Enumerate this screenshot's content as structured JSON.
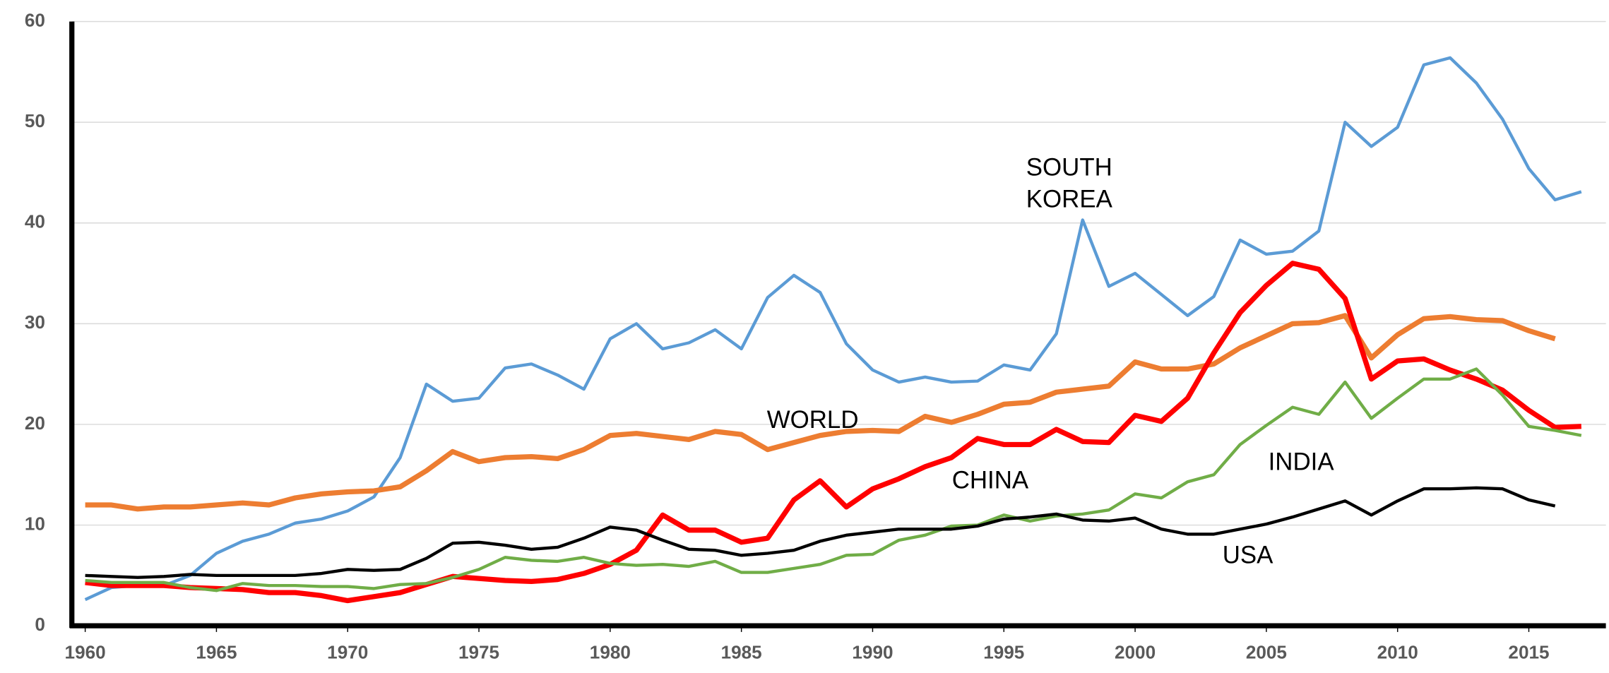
{
  "chart_data": {
    "type": "line",
    "xlim": [
      1959.5,
      2017.9
    ],
    "xticks": [
      1960,
      1965,
      1970,
      1975,
      1980,
      1985,
      1990,
      1995,
      2000,
      2005,
      2010,
      2015
    ],
    "ylim": [
      0,
      60
    ],
    "yticks": [
      0,
      10,
      20,
      30,
      40,
      50,
      60
    ],
    "grid": true,
    "x": [
      1960,
      1961,
      1962,
      1963,
      1964,
      1965,
      1966,
      1967,
      1968,
      1969,
      1970,
      1971,
      1972,
      1973,
      1974,
      1975,
      1976,
      1977,
      1978,
      1979,
      1980,
      1981,
      1982,
      1983,
      1984,
      1985,
      1986,
      1987,
      1988,
      1989,
      1990,
      1991,
      1992,
      1993,
      1994,
      1995,
      1996,
      1997,
      1998,
      1999,
      2000,
      2001,
      2002,
      2003,
      2004,
      2005,
      2006,
      2007,
      2008,
      2009,
      2010,
      2011,
      2012,
      2013,
      2014,
      2015,
      2016,
      2017
    ],
    "series": [
      {
        "name": "SOUTH KOREA",
        "color": "#5b9bd5",
        "width": 3,
        "values": [
          2.6,
          3.8,
          4.0,
          4.0,
          5.0,
          7.2,
          8.4,
          9.1,
          10.2,
          10.6,
          11.4,
          12.8,
          16.7,
          24.0,
          22.3,
          22.6,
          25.6,
          26.0,
          24.9,
          23.5,
          28.5,
          30.0,
          27.5,
          28.1,
          29.4,
          27.5,
          32.6,
          34.8,
          33.1,
          28.0,
          25.4,
          24.2,
          24.7,
          24.2,
          24.3,
          25.9,
          25.4,
          29.0,
          40.3,
          33.7,
          35.0,
          32.9,
          30.8,
          32.7,
          38.3,
          36.9,
          37.2,
          39.2,
          50.0,
          47.6,
          49.5,
          55.7,
          56.4,
          53.9,
          50.3,
          45.4,
          42.3,
          43.1
        ]
      },
      {
        "name": "WORLD",
        "color": "#ed7d31",
        "width": 5,
        "values": [
          12.0,
          12.0,
          11.6,
          11.8,
          11.8,
          12.0,
          12.2,
          12.0,
          12.7,
          13.1,
          13.3,
          13.4,
          13.8,
          15.4,
          17.3,
          16.3,
          16.7,
          16.8,
          16.6,
          17.5,
          18.9,
          19.1,
          18.8,
          18.5,
          19.3,
          19.0,
          17.5,
          18.2,
          18.9,
          19.3,
          19.4,
          19.3,
          20.8,
          20.2,
          21.0,
          22.0,
          22.2,
          23.2,
          23.5,
          23.8,
          26.2,
          25.5,
          25.5,
          26.0,
          27.6,
          28.8,
          30.0,
          30.1,
          30.8,
          26.6,
          28.9,
          30.5,
          30.7,
          30.4,
          30.3,
          29.3,
          28.5,
          null
        ]
      },
      {
        "name": "CHINA",
        "color": "#ff0000",
        "width": 5,
        "values": [
          4.3,
          4.0,
          4.0,
          4.0,
          3.8,
          3.7,
          3.6,
          3.3,
          3.3,
          3.0,
          2.5,
          2.9,
          3.3,
          4.1,
          4.9,
          4.7,
          4.5,
          4.4,
          4.6,
          5.2,
          6.1,
          7.5,
          11.0,
          9.5,
          9.5,
          8.3,
          8.7,
          12.5,
          14.4,
          11.8,
          13.6,
          14.6,
          15.8,
          16.7,
          18.6,
          18.0,
          18.0,
          19.5,
          18.3,
          18.2,
          20.9,
          20.3,
          22.6,
          27.1,
          31.1,
          33.8,
          36.0,
          35.4,
          32.5,
          24.5,
          26.3,
          26.5,
          25.4,
          24.5,
          23.4,
          21.4,
          19.7,
          19.8
        ]
      },
      {
        "name": "INDIA",
        "color": "#70ad47",
        "width": 3,
        "values": [
          4.5,
          4.3,
          4.3,
          4.3,
          3.8,
          3.5,
          4.2,
          4.0,
          4.0,
          3.9,
          3.9,
          3.7,
          4.1,
          4.2,
          4.8,
          5.6,
          6.8,
          6.5,
          6.4,
          6.8,
          6.2,
          6.0,
          6.1,
          5.9,
          6.4,
          5.3,
          5.3,
          5.7,
          6.1,
          7.0,
          7.1,
          8.5,
          9.0,
          9.9,
          10.0,
          11.0,
          10.4,
          10.9,
          11.1,
          11.5,
          13.1,
          12.7,
          14.3,
          15.0,
          18.0,
          19.9,
          21.7,
          21.0,
          24.2,
          20.6,
          22.6,
          24.5,
          24.5,
          25.5,
          22.9,
          19.8,
          19.4,
          18.9
        ]
      },
      {
        "name": "USA",
        "color": "#000000",
        "width": 3,
        "values": [
          5.0,
          4.9,
          4.8,
          4.9,
          5.1,
          5.0,
          5.0,
          5.0,
          5.0,
          5.2,
          5.6,
          5.5,
          5.6,
          6.7,
          8.2,
          8.3,
          8.0,
          7.6,
          7.8,
          8.7,
          9.8,
          9.5,
          8.5,
          7.6,
          7.5,
          7.0,
          7.2,
          7.5,
          8.4,
          9.0,
          9.3,
          9.6,
          9.6,
          9.6,
          9.9,
          10.6,
          10.8,
          11.1,
          10.5,
          10.4,
          10.7,
          9.6,
          9.1,
          9.1,
          9.6,
          10.1,
          10.8,
          11.6,
          12.4,
          11.0,
          12.4,
          13.6,
          13.6,
          13.7,
          13.6,
          12.5,
          11.9,
          null
        ]
      }
    ]
  }
}
